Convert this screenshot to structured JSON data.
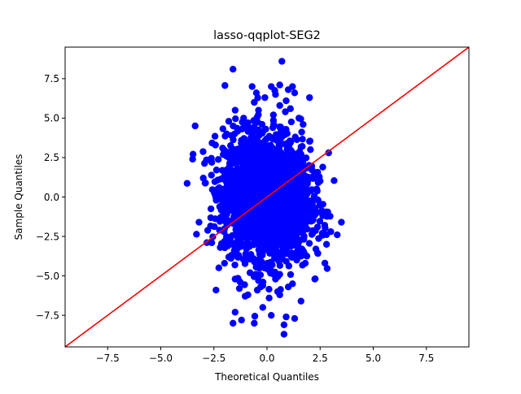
{
  "chart_data": {
    "type": "scatter",
    "title": "lasso-qqplot-SEG2",
    "xlabel": "Theoretical Quantiles",
    "ylabel": "Sample Quantiles",
    "xlim": [
      -9.5,
      9.5
    ],
    "ylim": [
      -9.5,
      9.5
    ],
    "xticks": [
      -7.5,
      -5.0,
      -2.5,
      0.0,
      2.5,
      5.0,
      7.5
    ],
    "yticks": [
      -7.5,
      -5.0,
      -2.5,
      0.0,
      2.5,
      5.0,
      7.5
    ],
    "xtick_labels": [
      "−7.5",
      "−5.0",
      "−2.5",
      "0.0",
      "2.5",
      "5.0",
      "7.5"
    ],
    "ytick_labels": [
      "−7.5",
      "−5.0",
      "−2.5",
      "0.0",
      "2.5",
      "5.0",
      "7.5"
    ],
    "grid": false,
    "colors": {
      "points": "#0000ff",
      "reference_line": "#ff0000"
    },
    "reference_line": {
      "x": [
        -9.5,
        9.5
      ],
      "y": [
        -9.5,
        9.5
      ]
    },
    "series": [
      {
        "values_note": "",
        "points": [
          [
            -1.6,
            8.1
          ],
          [
            0.7,
            8.6
          ],
          [
            -0.7,
            7.0
          ],
          [
            0.2,
            7.0
          ],
          [
            0.6,
            7.1
          ],
          [
            1.2,
            7.0
          ],
          [
            1.0,
            6.8
          ],
          [
            -0.5,
            6.6
          ],
          [
            -0.1,
            6.3
          ],
          [
            0.4,
            6.5
          ],
          [
            1.3,
            6.6
          ],
          [
            2.0,
            6.3
          ],
          [
            -0.6,
            6.0
          ],
          [
            0.9,
            6.1
          ],
          [
            -1.5,
            5.5
          ],
          [
            -0.4,
            5.5
          ],
          [
            0.6,
            5.8
          ],
          [
            1.1,
            5.6
          ],
          [
            -1.1,
            5.0
          ],
          [
            0.3,
            5.2
          ],
          [
            1.5,
            5.0
          ],
          [
            -1.8,
            4.8
          ],
          [
            -0.9,
            4.7
          ],
          [
            1.7,
            4.6
          ],
          [
            -3.5,
            2.4
          ],
          [
            -2.6,
            2.2
          ],
          [
            2.9,
            2.8
          ],
          [
            3.5,
            -1.6
          ],
          [
            -3.2,
            -1.6
          ],
          [
            -2.2,
            -3.2
          ],
          [
            -2.6,
            -2.9
          ],
          [
            2.6,
            -2.3
          ],
          [
            2.8,
            -3.0
          ],
          [
            3.0,
            -2.2
          ],
          [
            -1.8,
            -3.8
          ],
          [
            -1.0,
            -3.6
          ],
          [
            1.4,
            -4.0
          ],
          [
            2.3,
            -3.3
          ],
          [
            -2.0,
            -4.2
          ],
          [
            -0.8,
            -4.8
          ],
          [
            0.6,
            -4.9
          ],
          [
            1.8,
            -4.2
          ],
          [
            -1.5,
            -5.2
          ],
          [
            -0.4,
            -5.3
          ],
          [
            0.4,
            -5.2
          ],
          [
            1.2,
            -5.5
          ],
          [
            -2.4,
            -5.9
          ],
          [
            -1.3,
            -5.8
          ],
          [
            -0.3,
            -5.7
          ],
          [
            0.5,
            -6.0
          ],
          [
            1.0,
            -5.7
          ],
          [
            -0.9,
            -6.2
          ],
          [
            0.1,
            -6.4
          ],
          [
            0.6,
            -6.2
          ],
          [
            -1.5,
            -7.3
          ],
          [
            0.2,
            -7.5
          ],
          [
            0.9,
            -7.6
          ],
          [
            1.3,
            -7.7
          ],
          [
            -1.6,
            -8.0
          ],
          [
            -1.2,
            -7.8
          ],
          [
            -0.6,
            -8.0
          ],
          [
            0.8,
            -8.1
          ],
          [
            0.8,
            -8.7
          ],
          [
            -0.2,
            -7.0
          ],
          [
            1.6,
            -6.6
          ]
        ]
      }
    ]
  }
}
